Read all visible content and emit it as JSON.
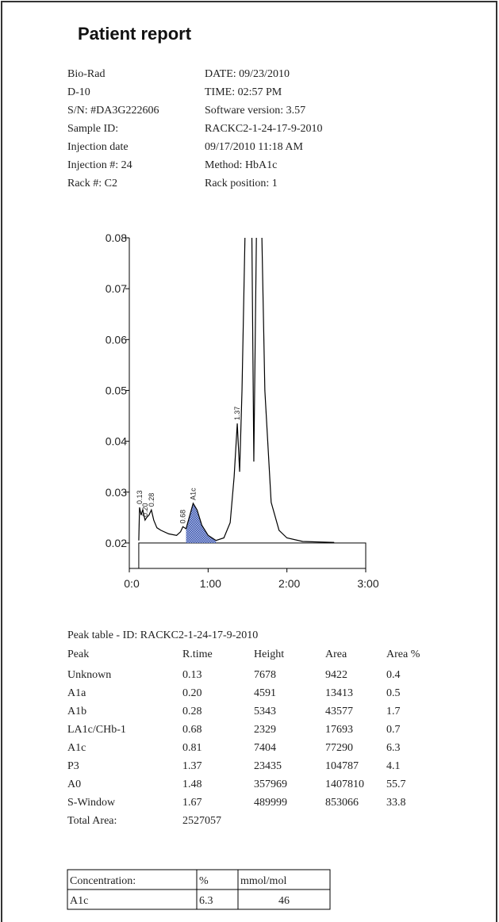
{
  "header": {
    "title": "Patient report"
  },
  "info": [
    [
      "Bio-Rad",
      "DATE: 09/23/2010"
    ],
    [
      "D-10",
      "TIME:  02:57 PM"
    ],
    [
      "S/N: #DA3G222606",
      "Software version: 3.57"
    ],
    [
      "Sample ID:",
      "RACKC2-1-24-17-9-2010"
    ],
    [
      "Injection date",
      "09/17/2010 11:18 AM"
    ],
    [
      "Injection #: 24",
      "Method: HbA1c"
    ],
    [
      "Rack #: C2",
      "Rack position: 1"
    ]
  ],
  "chart_data": {
    "type": "line",
    "x": [
      0.12,
      0.13,
      0.15,
      0.17,
      0.2,
      0.22,
      0.25,
      0.28,
      0.31,
      0.35,
      0.4,
      0.5,
      0.6,
      0.65,
      0.68,
      0.72,
      0.76,
      0.81,
      0.86,
      0.92,
      1.0,
      1.1,
      1.2,
      1.28,
      1.33,
      1.37,
      1.4,
      1.43,
      1.48,
      1.55,
      1.58,
      1.62,
      1.67,
      1.72,
      1.8,
      1.9,
      2.0,
      2.2,
      2.4,
      2.6
    ],
    "values": [
      0.0205,
      0.027,
      0.0255,
      0.0265,
      0.0245,
      0.025,
      0.0255,
      0.0265,
      0.0245,
      0.023,
      0.0225,
      0.0218,
      0.0215,
      0.0222,
      0.0232,
      0.0228,
      0.025,
      0.0278,
      0.0265,
      0.0235,
      0.0215,
      0.0205,
      0.021,
      0.024,
      0.033,
      0.0435,
      0.034,
      0.05,
      0.09,
      0.09,
      0.036,
      0.09,
      0.09,
      0.05,
      0.028,
      0.0225,
      0.021,
      0.0203,
      0.0202,
      0.0201
    ],
    "color": "#000000",
    "area_color": "#4a63b5",
    "xlim": [
      0,
      3
    ],
    "xticks": [
      {
        "value": 0,
        "label": "0:0"
      },
      {
        "value": 1,
        "label": "1:00"
      },
      {
        "value": 2,
        "label": "2:00"
      },
      {
        "value": 3,
        "label": "3:00"
      }
    ],
    "ylim": [
      0.015,
      0.08
    ],
    "yticks": [
      0.02,
      0.03,
      0.04,
      0.05,
      0.06,
      0.07,
      0.08
    ],
    "peak_labels": [
      {
        "label": "0.13",
        "x": 0.13
      },
      {
        "label": "0.20",
        "x": 0.2
      },
      {
        "label": "0.28",
        "x": 0.28
      },
      {
        "label": "0.68",
        "x": 0.68
      },
      {
        "label": "A1c",
        "x": 0.81
      },
      {
        "label": "1.37",
        "x": 1.37
      }
    ]
  },
  "peak_table": {
    "title": "Peak table  -  ID: RACKC2-1-24-17-9-2010",
    "header": [
      "Peak",
      "R.time",
      "Height",
      "Area",
      "Area %"
    ],
    "rows": [
      [
        "Unknown",
        "0.13",
        "7678",
        "9422",
        "0.4"
      ],
      [
        "A1a",
        "0.20",
        "4591",
        "13413",
        "0.5"
      ],
      [
        "A1b",
        "0.28",
        "5343",
        "43577",
        "1.7"
      ],
      [
        "LA1c/CHb-1",
        "0.68",
        "2329",
        "17693",
        "0.7"
      ],
      [
        "A1c",
        "0.81",
        "7404",
        "77290",
        "6.3"
      ],
      [
        "P3",
        "1.37",
        "23435",
        "104787",
        "4.1"
      ],
      [
        "A0",
        "1.48",
        "357969",
        "1407810",
        "55.7"
      ],
      [
        "S-Window",
        "1.67",
        "489999",
        "853066",
        "33.8"
      ]
    ],
    "total": [
      "Total Area:",
      "2527057"
    ]
  },
  "concentration_table": {
    "rows": [
      [
        "Concentration:",
        "%",
        "mmol/mol"
      ],
      [
        "A1c",
        "6.3",
        "46"
      ]
    ]
  }
}
